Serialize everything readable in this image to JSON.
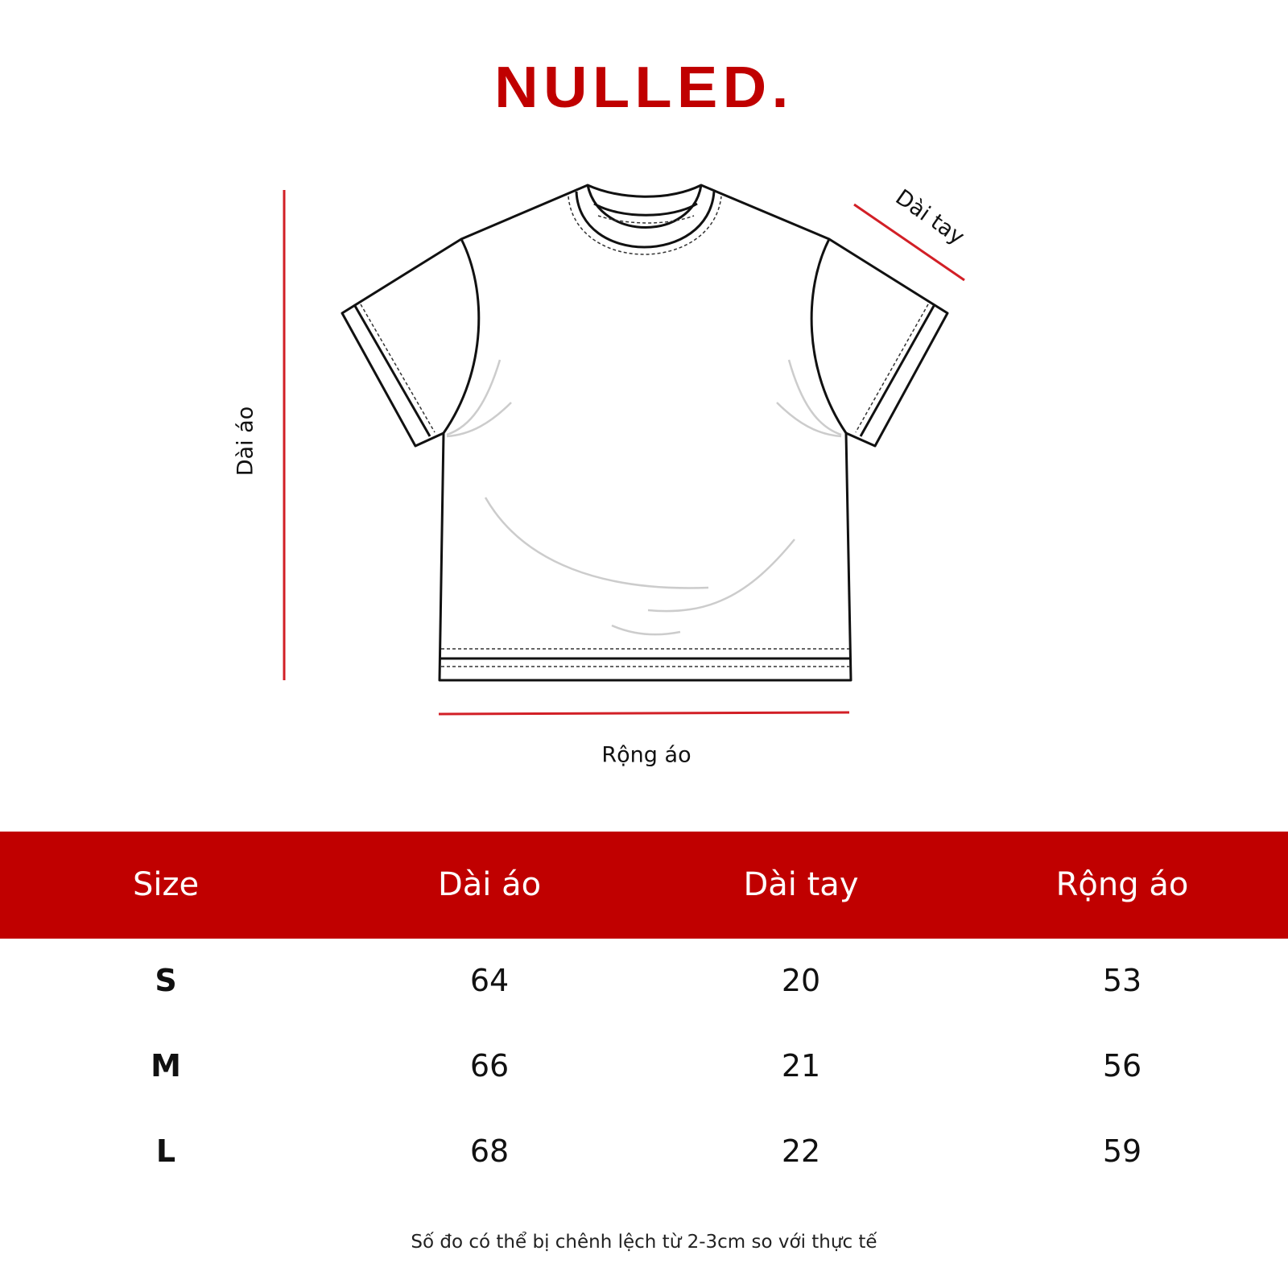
{
  "brand": {
    "logo": "NULLED."
  },
  "diagram": {
    "length_label": "Dài áo",
    "sleeve_label": "Dài tay",
    "width_label": "Rộng áo",
    "measure_line_color": "#d21f26"
  },
  "table": {
    "header_color": "#c00000",
    "columns": [
      "Size",
      "Dài áo",
      "Dài tay",
      "Rộng áo"
    ],
    "rows": [
      [
        "S",
        "64",
        "20",
        "53"
      ],
      [
        "M",
        "66",
        "21",
        "56"
      ],
      [
        "L",
        "68",
        "22",
        "59"
      ]
    ]
  },
  "note": "Số đo có thể bị chênh lệch từ 2-3cm so với thực tế"
}
